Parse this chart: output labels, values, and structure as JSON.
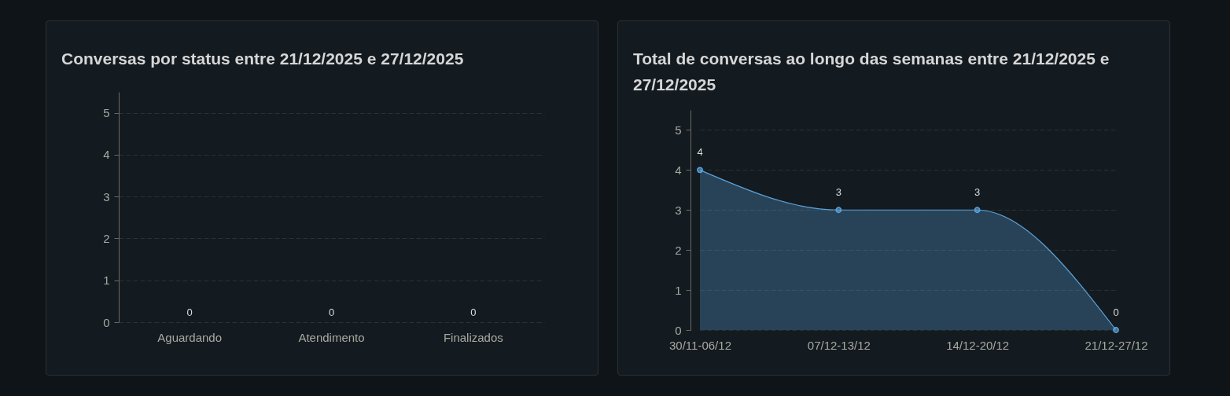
{
  "chart_data": [
    {
      "type": "bar",
      "title": "Conversas por status entre 21/12/2025 e 27/12/2025",
      "categories": [
        "Aguardando",
        "Atendimento",
        "Finalizados"
      ],
      "values": [
        0,
        0,
        0
      ],
      "ylim": [
        0,
        5.5
      ],
      "yticks": [
        0,
        1,
        2,
        3,
        4,
        5
      ],
      "grid": "y",
      "data_labels": true
    },
    {
      "type": "area",
      "title": "Total de conversas ao longo das semanas entre 21/12/2025 e 27/12/2025",
      "categories": [
        "30/11-06/12",
        "07/12-13/12",
        "14/12-20/12",
        "21/12-27/12"
      ],
      "values": [
        4,
        3,
        3,
        0
      ],
      "color": "#5ba3db",
      "ylim": [
        0,
        5.5
      ],
      "yticks": [
        0,
        1,
        2,
        3,
        4,
        5
      ],
      "grid": "y",
      "marker": "circle",
      "data_labels": true
    }
  ]
}
